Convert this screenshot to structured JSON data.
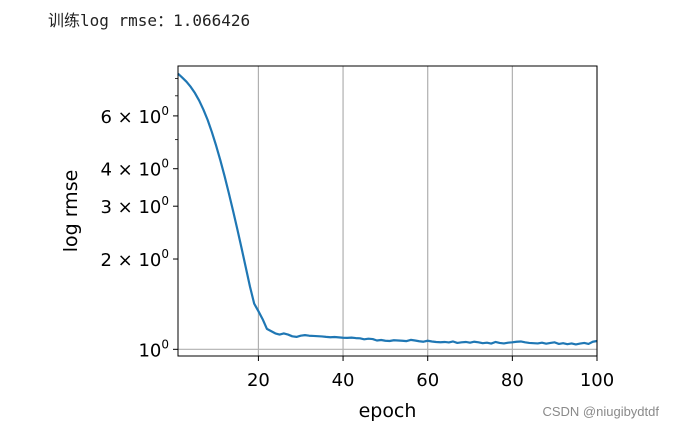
{
  "header": {
    "output_line": "训练log rmse：1.066426"
  },
  "watermark": {
    "text": "CSDN @niugibydtdf"
  },
  "chart_data": {
    "type": "line",
    "xlabel": "epoch",
    "ylabel": "log rmse",
    "xlim": [
      1,
      100
    ],
    "ylim": [
      0.95,
      8.8
    ],
    "yscale": "log",
    "grid": "x-only",
    "xticks": [
      20,
      40,
      60,
      80,
      100
    ],
    "xtick_labels": [
      "20",
      "40",
      "60",
      "80",
      "100"
    ],
    "yticks": [
      1,
      2,
      3,
      4,
      6
    ],
    "ytick_labels": [
      {
        "mantissa": "",
        "exp": "0",
        "text": "10"
      },
      {
        "mantissa": "2 × ",
        "exp": "0",
        "text": "10"
      },
      {
        "mantissa": "3 × ",
        "exp": "0",
        "text": "10"
      },
      {
        "mantissa": "4 × ",
        "exp": "0",
        "text": "10"
      },
      {
        "mantissa": "6 × ",
        "exp": "0",
        "text": "10"
      }
    ],
    "minor_yticks": [
      5,
      7,
      8
    ],
    "line_color": "#1f77b4",
    "series": [
      {
        "values": [
          8.3,
          8.05,
          7.8,
          7.5,
          7.15,
          6.75,
          6.3,
          5.82,
          5.3,
          4.78,
          4.27,
          3.78,
          3.32,
          2.9,
          2.52,
          2.18,
          1.88,
          1.62,
          1.42,
          1.34,
          1.26,
          1.17,
          1.15,
          1.13,
          1.12,
          1.13,
          1.12,
          1.105,
          1.1,
          1.11,
          1.115,
          1.11,
          1.108,
          1.106,
          1.104,
          1.1,
          1.097,
          1.099,
          1.096,
          1.093,
          1.092,
          1.094,
          1.09,
          1.088,
          1.08,
          1.085,
          1.082,
          1.07,
          1.074,
          1.068,
          1.066,
          1.072,
          1.07,
          1.068,
          1.065,
          1.075,
          1.07,
          1.064,
          1.06,
          1.068,
          1.062,
          1.058,
          1.056,
          1.058,
          1.054,
          1.062,
          1.05,
          1.055,
          1.058,
          1.052,
          1.06,
          1.055,
          1.048,
          1.052,
          1.045,
          1.058,
          1.05,
          1.046,
          1.052,
          1.055,
          1.06,
          1.062,
          1.055,
          1.05,
          1.048,
          1.046,
          1.052,
          1.044,
          1.05,
          1.055,
          1.042,
          1.048,
          1.04,
          1.046,
          1.038,
          1.045,
          1.05,
          1.042,
          1.06,
          1.066
        ]
      }
    ]
  }
}
